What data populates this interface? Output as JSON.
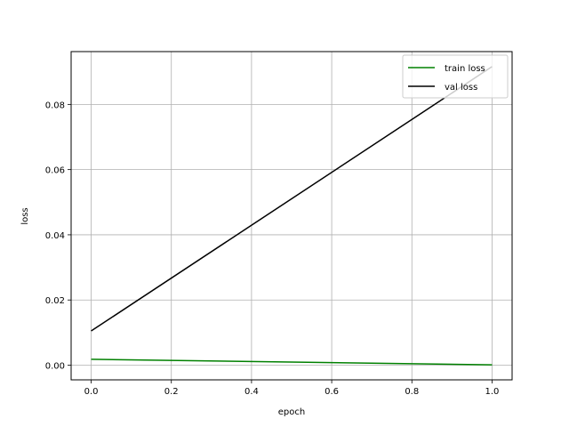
{
  "chart_data": {
    "type": "line",
    "title": "",
    "xlabel": "epoch",
    "ylabel": "loss",
    "xlim": [
      -0.05,
      1.05
    ],
    "ylim": [
      -0.0045,
      0.0962
    ],
    "xticks": [
      0.0,
      0.2,
      0.4,
      0.6,
      0.8,
      1.0
    ],
    "xtick_labels": [
      "0.0",
      "0.2",
      "0.4",
      "0.6",
      "0.8",
      "1.0"
    ],
    "yticks": [
      0.0,
      0.02,
      0.04,
      0.06,
      0.08
    ],
    "ytick_labels": [
      "0.00",
      "0.02",
      "0.04",
      "0.06",
      "0.08"
    ],
    "grid": true,
    "legend_position": "top-right",
    "series": [
      {
        "name": "train loss",
        "color": "#008000",
        "x": [
          0.0,
          1.0
        ],
        "y": [
          0.0018,
          0.0001
        ]
      },
      {
        "name": "val loss",
        "color": "#000000",
        "x": [
          0.0,
          1.0
        ],
        "y": [
          0.0105,
          0.0916
        ]
      }
    ]
  }
}
